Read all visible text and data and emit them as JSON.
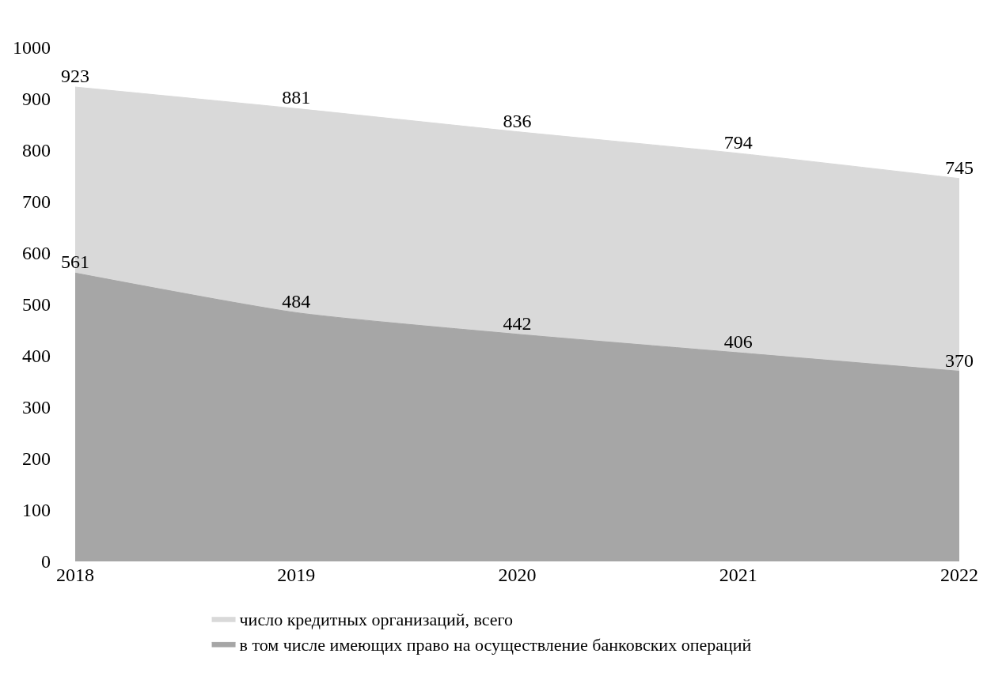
{
  "chart_data": {
    "type": "area",
    "categories": [
      "2018",
      "2019",
      "2020",
      "2021",
      "2022"
    ],
    "series": [
      {
        "name": "число кредитных организаций, всего",
        "color": "#d9d9d9",
        "values": [
          923,
          881,
          836,
          794,
          745
        ]
      },
      {
        "name": "в том числе имеющих право на осуществление банковских операций",
        "color": "#a6a6a6",
        "values": [
          561,
          484,
          442,
          406,
          370
        ]
      }
    ],
    "ylim": [
      0,
      1000
    ],
    "yticks": [
      0,
      100,
      200,
      300,
      400,
      500,
      600,
      700,
      800,
      900,
      1000
    ],
    "data_labels": true,
    "legend": "bottom"
  }
}
